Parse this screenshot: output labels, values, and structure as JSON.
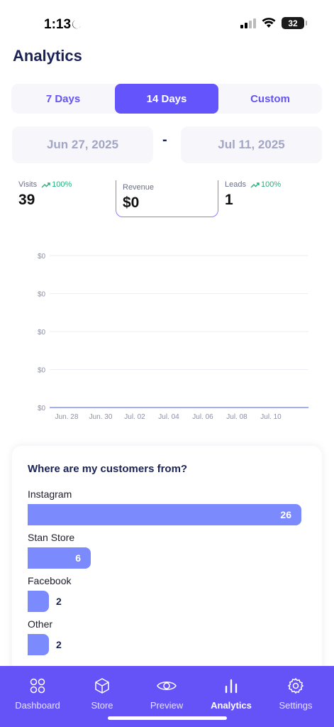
{
  "status": {
    "time": "1:13",
    "battery": "32"
  },
  "title": "Analytics",
  "range_tabs": [
    {
      "label": "7 Days"
    },
    {
      "label": "14 Days"
    },
    {
      "label": "Custom"
    }
  ],
  "dates": {
    "start": "Jun 27, 2025",
    "separator": "-",
    "end": "Jul 11, 2025"
  },
  "stats": [
    {
      "label": "Visits",
      "change": "100%",
      "value": "39"
    },
    {
      "label": "Revenue",
      "change": "",
      "value": "$0"
    },
    {
      "label": "Leads",
      "change": "100%",
      "value": "1"
    }
  ],
  "chart_data": {
    "type": "line",
    "x": [
      "Jun. 28",
      "Jun. 30",
      "Jul. 02",
      "Jul. 04",
      "Jul. 06",
      "Jul. 08",
      "Jul. 10"
    ],
    "y_ticks": [
      "$0",
      "$0",
      "$0",
      "$0",
      "$0"
    ],
    "series": [
      {
        "values": [
          0,
          0,
          0,
          0,
          0,
          0,
          0
        ]
      }
    ],
    "grid": true,
    "line_color": "#7b8afc"
  },
  "sources": {
    "title": "Where are my customers from?",
    "max": 26,
    "items": [
      {
        "name": "Instagram",
        "count": "26",
        "value": 26
      },
      {
        "name": "Stan Store",
        "count": "6",
        "value": 6
      },
      {
        "name": "Facebook",
        "count": "2",
        "value": 2
      },
      {
        "name": "Other",
        "count": "2",
        "value": 2
      }
    ]
  },
  "nav": [
    {
      "label": "Dashboard",
      "icon": "dashboard-icon"
    },
    {
      "label": "Store",
      "icon": "box-icon"
    },
    {
      "label": "Preview",
      "icon": "eye-icon"
    },
    {
      "label": "Analytics",
      "icon": "bar-chart-icon"
    },
    {
      "label": "Settings",
      "icon": "gear-icon"
    }
  ],
  "colors": {
    "accent": "#6355fb",
    "bar": "#7b8afc",
    "positive": "#27b07b"
  }
}
